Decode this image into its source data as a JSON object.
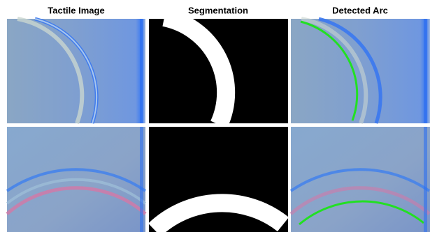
{
  "columns": [
    "Tactile Image",
    "Segmentation",
    "Detected Arc"
  ]
}
